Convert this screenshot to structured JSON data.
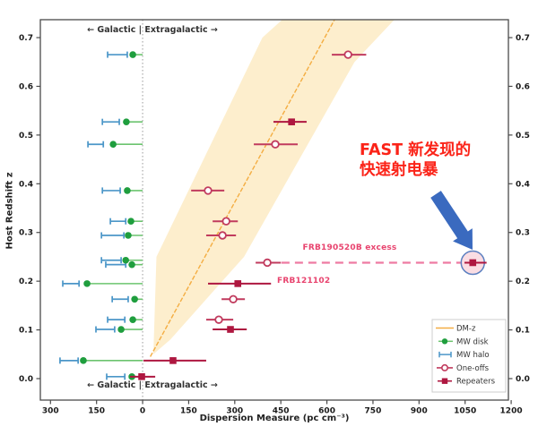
{
  "chart_data": {
    "type": "scatter",
    "title": "",
    "xlabel": "Dispersion Measure (pc cm⁻³)",
    "ylabel": "Host Redshift z",
    "xlim": [
      -333,
      1191
    ],
    "ylim": [
      -0.0441,
      0.7368
    ],
    "grid": false,
    "x_ticks": {
      "values": [
        -300,
        -150,
        0,
        150,
        300,
        450,
        600,
        750,
        900,
        1050,
        1200
      ],
      "labels": [
        "300",
        "150",
        "0",
        "150",
        "300",
        "450",
        "600",
        "750",
        "900",
        "1050",
        "1200"
      ]
    },
    "y_ticks": {
      "values": [
        0.0,
        0.1,
        0.2,
        0.3,
        0.4,
        0.5,
        0.6,
        0.7
      ],
      "labels": [
        "0.0",
        "0.1",
        "0.2",
        "0.3",
        "0.4",
        "0.5",
        "0.6",
        "0.7"
      ]
    },
    "zero_line_dm": 0,
    "band_polygon": [
      [
        35,
        0.05
      ],
      [
        45,
        0.25
      ],
      [
        390,
        0.7
      ],
      [
        455,
        0.737
      ],
      [
        820,
        0.737
      ],
      [
        690,
        0.65
      ],
      [
        330,
        0.25
      ],
      [
        90,
        0.08
      ]
    ],
    "dm_z_line": {
      "dm": [
        25,
        625
      ],
      "z": [
        0.045,
        0.737
      ]
    },
    "frb190520b_dashed": {
      "z": 0.238,
      "from_dm": 452,
      "to_dm": 1040
    },
    "highlight": {
      "dm": 1075,
      "z": 0.238,
      "radius": 13
    },
    "arrow": {
      "tail": [
        486,
        217
      ],
      "tip": [
        527,
        279
      ],
      "shaft_half": 7,
      "head_half": 13,
      "head_len": 20
    },
    "series": {
      "mw_disk": {
        "label": "MW disk",
        "points": [
          {
            "dm": -32,
            "z": 0.665
          },
          {
            "dm": -53,
            "z": 0.527
          },
          {
            "dm": -96,
            "z": 0.481
          },
          {
            "dm": -50,
            "z": 0.386
          },
          {
            "dm": -38,
            "z": 0.323
          },
          {
            "dm": -47,
            "z": 0.294
          },
          {
            "dm": -55,
            "z": 0.243
          },
          {
            "dm": -35,
            "z": 0.234
          },
          {
            "dm": -181,
            "z": 0.195
          },
          {
            "dm": -26,
            "z": 0.163
          },
          {
            "dm": -32,
            "z": 0.121
          },
          {
            "dm": -70,
            "z": 0.101
          },
          {
            "dm": -193,
            "z": 0.037
          },
          {
            "dm": -35,
            "z": 0.004
          }
        ]
      },
      "mw_halo": {
        "label": "MW halo",
        "bars": [
          {
            "lo": -114,
            "hi": -50,
            "z": 0.665
          },
          {
            "lo": -131,
            "hi": -76,
            "z": 0.527
          },
          {
            "lo": -178,
            "hi": -128,
            "z": 0.481
          },
          {
            "lo": -131,
            "hi": -73,
            "z": 0.386
          },
          {
            "lo": -105,
            "hi": -55,
            "z": 0.323
          },
          {
            "lo": -134,
            "hi": -61,
            "z": 0.294
          },
          {
            "lo": -134,
            "hi": -70,
            "z": 0.243
          },
          {
            "lo": -120,
            "hi": -55,
            "z": 0.234
          },
          {
            "lo": -260,
            "hi": -207,
            "z": 0.195
          },
          {
            "lo": -99,
            "hi": -47,
            "z": 0.163
          },
          {
            "lo": -114,
            "hi": -58,
            "z": 0.121
          },
          {
            "lo": -152,
            "hi": -91,
            "z": 0.101
          },
          {
            "lo": -269,
            "hi": -210,
            "z": 0.037
          },
          {
            "lo": -117,
            "hi": -58,
            "z": 0.004
          }
        ]
      },
      "one_offs": {
        "label": "One-offs",
        "points": [
          {
            "dm": 669,
            "lo": 616,
            "hi": 728,
            "z": 0.665
          },
          {
            "dm": 432,
            "lo": 362,
            "hi": 505,
            "z": 0.481
          },
          {
            "dm": 213,
            "lo": 158,
            "hi": 266,
            "z": 0.386
          },
          {
            "dm": 272,
            "lo": 228,
            "hi": 310,
            "z": 0.323
          },
          {
            "dm": 260,
            "lo": 207,
            "hi": 304,
            "z": 0.294
          },
          {
            "dm": 406,
            "lo": 368,
            "hi": 450,
            "z": 0.238
          },
          {
            "dm": 295,
            "lo": 257,
            "hi": 333,
            "z": 0.163
          },
          {
            "dm": 248,
            "lo": 207,
            "hi": 295,
            "z": 0.121
          }
        ]
      },
      "repeaters": {
        "label": "Repeaters",
        "points": [
          {
            "dm": 485,
            "lo": 426,
            "hi": 534,
            "z": 0.527
          },
          {
            "dm": 310,
            "lo": 213,
            "hi": 418,
            "z": 0.195
          },
          {
            "dm": 286,
            "lo": 228,
            "hi": 339,
            "z": 0.101
          },
          {
            "dm": 99,
            "lo": 3,
            "hi": 207,
            "z": 0.037
          },
          {
            "dm": -3,
            "lo": -41,
            "hi": 41,
            "z": 0.004
          },
          {
            "dm": 1075,
            "lo": 1048,
            "hi": 1120,
            "z": 0.238,
            "highlight": true
          }
        ]
      }
    },
    "legend": {
      "position": "lower right",
      "entries": [
        {
          "key": "dmz",
          "label": "DM-z"
        },
        {
          "key": "disk",
          "label": "MW disk"
        },
        {
          "key": "halo",
          "label": "MW halo"
        },
        {
          "key": "oneoff",
          "label": "One-offs"
        },
        {
          "key": "repeater",
          "label": "Repeaters"
        }
      ]
    },
    "annotations": {
      "galactic_top": "←  Galactic | Extragalactic  →",
      "galactic_bottom": "←  Galactic | Extragalactic  →",
      "frb190520b": "FRB190520B excess",
      "frb121102": "FRB121102",
      "callout_line1": "FAST 新发现的",
      "callout_line2": "快速射电暴"
    },
    "colors": {
      "band": "#fdeecd",
      "dmz": "#f4ad42",
      "disk": "#1f9e3e",
      "disk_line": "#6cc46f",
      "halo": "#4b96c8",
      "oneoff": "#c13b5e",
      "repeater": "#ae1740",
      "dashed": "#ee7ba2",
      "label_pink": "#e8436e",
      "callout_red": "#fb2318",
      "arrow": "#3a6abf",
      "highlight_fill": "#f9d9e0",
      "highlight_stroke": "#5b7fc0",
      "axis": "#4a4a4a",
      "tick_text": "#1a1a1a",
      "zero_line": "#9a9a9a",
      "legend_border": "#cccccc"
    }
  }
}
